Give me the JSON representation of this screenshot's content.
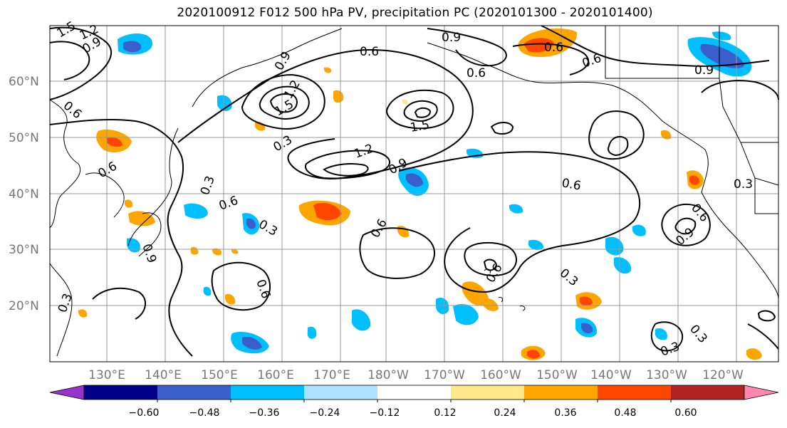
{
  "title": "2020100912 F012 500 hPa PV, precipitation PC (2020101300 - 2020101400)",
  "lon_labels": [
    "130°E",
    "140°E",
    "150°E",
    "160°E",
    "170°E",
    "180°W",
    "170°W",
    "160°W",
    "150°W",
    "140°W",
    "130°W",
    "120°W"
  ],
  "lat_labels": [
    "60°N",
    "50°N",
    "40°N",
    "30°N",
    "20°N"
  ],
  "colorbar": {
    "labels": [
      "−0.60",
      "−0.48",
      "−0.36",
      "−0.24",
      "−0.12",
      "0.12",
      "0.24",
      "0.36",
      "0.48",
      "0.60"
    ],
    "colors": [
      "#9932cc",
      "#00008b",
      "#3a5fcd",
      "#00bfff",
      "#b0e2ff",
      "#ffffff",
      "#ffe88a",
      "#ffa500",
      "#ff4500",
      "#b22222",
      "#ff87b0"
    ]
  },
  "contour_labels": [
    "1.5",
    "1.2",
    "0.9",
    "0.6",
    "0.3",
    "0.9",
    "0.6",
    "1.5",
    "1.2",
    "1.5",
    "0.9",
    "0.6",
    "0.3",
    "0.6",
    "0.9",
    "0.6",
    "1.2",
    "0.6",
    "0.3",
    "0.6",
    "0.3",
    "0.6",
    "0.6",
    "0.3",
    "0.6",
    "0.9",
    "0.3",
    "0.3",
    "0.3",
    "0.6",
    "0.9",
    "0.9",
    "0.6"
  ]
}
